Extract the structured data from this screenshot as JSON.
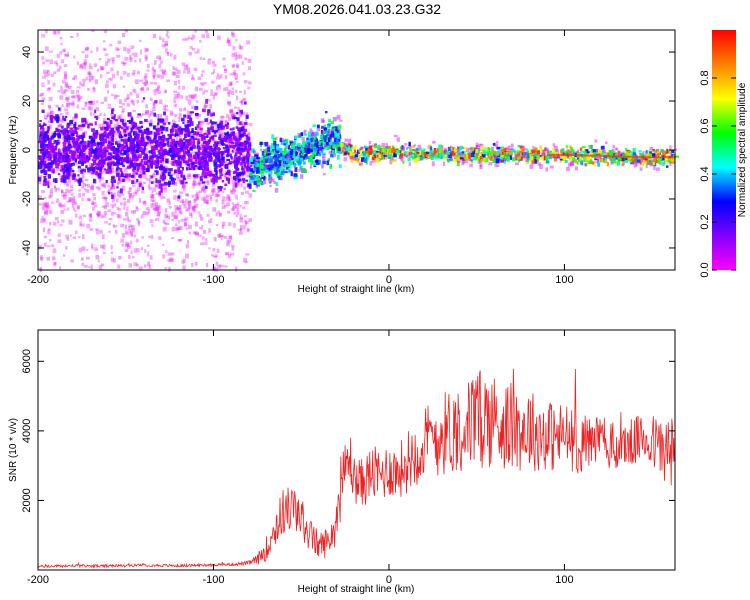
{
  "title": "YM08.2026.041.03.23.G32",
  "chart_data": [
    {
      "type": "heatmap",
      "name": "spectrogram",
      "xlabel": "Height of straight line (km)",
      "ylabel": "Frequency (Hz)",
      "xlim": [
        -200,
        163
      ],
      "ylim": [
        -49,
        49
      ],
      "xticks": [
        -200,
        -100,
        0,
        100
      ],
      "yticks": [
        -40,
        -20,
        0,
        20,
        40
      ],
      "colorbar": {
        "label": "Normalized spectral amplitude",
        "range": [
          0.0,
          1.0
        ],
        "ticks": [
          0.0,
          0.2,
          0.4,
          0.6,
          0.8
        ],
        "colormap": [
          "#ff00ff",
          "#8000ff",
          "#0000ff",
          "#00ffff",
          "#00ff00",
          "#ffff00",
          "#ff8000",
          "#ff0000"
        ]
      },
      "segments": [
        {
          "x_range": [
            -200,
            -80
          ],
          "center_hz": 0,
          "core_spread_hz": 7,
          "noise_spread_hz": 49,
          "amplitude": 0.15
        },
        {
          "x_range": [
            -80,
            -28
          ],
          "center_hz": -3,
          "core_spread_hz": 4,
          "noise_spread_hz": 8,
          "amplitude": 0.35
        },
        {
          "x_range": [
            -28,
            163
          ],
          "center_hz": -2,
          "core_spread_hz": 1.5,
          "noise_spread_hz": 4,
          "amplitude": 0.8
        }
      ],
      "track": [
        [
          -82,
          -8
        ],
        [
          -78,
          -9
        ],
        [
          -70,
          -5
        ],
        [
          -60,
          -3
        ],
        [
          -50,
          0
        ],
        [
          -40,
          2
        ],
        [
          -32,
          5
        ],
        [
          -28,
          2
        ],
        [
          -20,
          -2
        ],
        [
          0,
          -1
        ],
        [
          50,
          -2
        ],
        [
          100,
          -2
        ],
        [
          150,
          -3
        ],
        [
          163,
          -3
        ]
      ]
    },
    {
      "type": "line",
      "name": "snr",
      "xlabel": "Height of straight line (km)",
      "ylabel": "SNR (10 * v/v)",
      "xlim": [
        -200,
        163
      ],
      "ylim": [
        0,
        6900
      ],
      "xticks": [
        -200,
        -100,
        0,
        100
      ],
      "yticks": [
        2000,
        4000,
        6000
      ],
      "color": "#ee2222",
      "series": [
        {
          "name": "SNR",
          "x": [
            -200,
            -180,
            -160,
            -140,
            -120,
            -100,
            -90,
            -80,
            -75,
            -70,
            -65,
            -60,
            -55,
            -50,
            -45,
            -40,
            -35,
            -30,
            -27,
            -25,
            -22,
            -20,
            -15,
            -10,
            -5,
            0,
            5,
            10,
            15,
            20,
            25,
            30,
            35,
            40,
            45,
            50,
            55,
            60,
            65,
            70,
            75,
            80,
            85,
            90,
            95,
            100,
            105,
            110,
            115,
            120,
            125,
            130,
            135,
            140,
            145,
            150,
            155,
            160,
            163
          ],
          "values": [
            100,
            120,
            110,
            140,
            120,
            150,
            160,
            200,
            300,
            600,
            1200,
            1700,
            1800,
            1500,
            1000,
            700,
            800,
            1300,
            2400,
            2900,
            3200,
            2600,
            2500,
            2800,
            2700,
            2900,
            2800,
            3100,
            3400,
            3600,
            3800,
            3900,
            4000,
            4100,
            4200,
            4300,
            4400,
            4300,
            4200,
            4100,
            4000,
            4100,
            3900,
            3900,
            3800,
            3900,
            3700,
            3600,
            3700,
            3800,
            3600,
            3500,
            3600,
            3700,
            3800,
            3700,
            3500,
            3400,
            3200
          ],
          "noise_amplitude": [
            40,
            40,
            40,
            40,
            40,
            40,
            40,
            60,
            150,
            350,
            600,
            700,
            700,
            600,
            500,
            400,
            450,
            600,
            800,
            800,
            800,
            700,
            700,
            800,
            800,
            800,
            800,
            900,
            1000,
            1100,
            1200,
            1200,
            1300,
            1300,
            1300,
            1400,
            1500,
            1400,
            1300,
            1300,
            1200,
            1200,
            1100,
            1100,
            1000,
            1000,
            900,
            900,
            800,
            800,
            700,
            700,
            700,
            700,
            700,
            800,
            900,
            1100,
            1300
          ]
        }
      ]
    }
  ]
}
